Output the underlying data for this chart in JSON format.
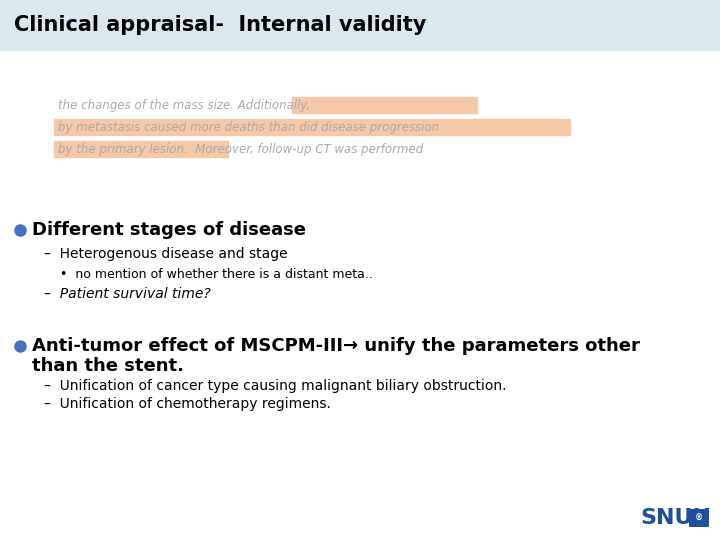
{
  "title": "Clinical appraisal-  Internal validity",
  "header_bg": "#dce8f0",
  "slide_bg": "#ffffff",
  "excerpt_lines": [
    "the changes of the mass size. Additionally,",
    "by metastasis caused more deaths than did disease progression",
    "by the primary lesion.  Moreover, follow-up CT was performed"
  ],
  "highlight_color": "#f5c8a8",
  "excerpt_text_color": "#aaaaaa",
  "bullet_color": "#4472c4",
  "bullet1_text": "Different stages of disease",
  "bullet1_sub1": "–  Heterogenous disease and stage",
  "bullet1_sub1_sub": "•  no mention of whether there is a distant meta..",
  "bullet1_sub2": "–  Patient survival time?",
  "bullet2_line1": "Anti-tumor effect of MSCPM-III→ unify the parameters other",
  "bullet2_line2": "than the stent.",
  "bullet2_sub1": "–  Unification of cancer type causing malignant biliary obstruction.",
  "bullet2_sub2": "–  Unification of chemotherapy regimens.",
  "snuh_color": "#1f4e9c",
  "title_fontsize": 15,
  "excerpt_fontsize": 8.5,
  "bullet1_fontsize": 13,
  "sub_fontsize": 10,
  "snuh_fontsize": 16
}
